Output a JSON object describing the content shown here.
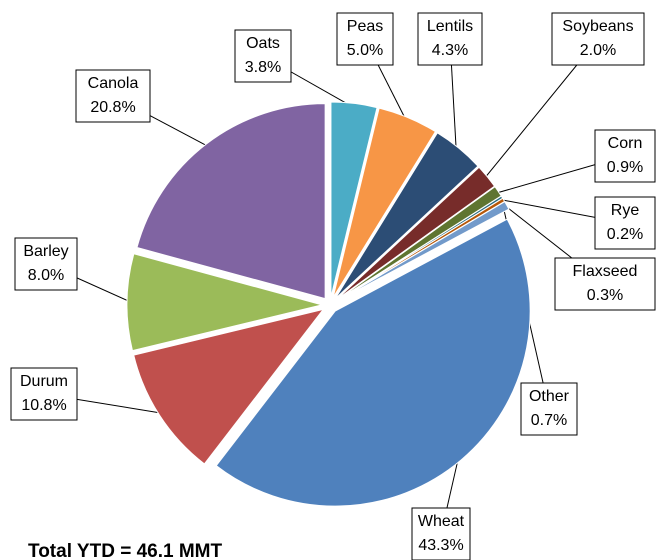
{
  "chart_data": {
    "type": "pie",
    "annotation": "Total YTD = 46.1 MMT",
    "categories": [
      "Oats",
      "Peas",
      "Lentils",
      "Soybeans",
      "Corn",
      "Rye",
      "Flaxseed",
      "Other",
      "Wheat",
      "Durum",
      "Barley",
      "Canola"
    ],
    "values": [
      3.8,
      5.0,
      4.3,
      2.0,
      0.9,
      0.2,
      0.3,
      0.7,
      43.3,
      10.8,
      8.0,
      20.8
    ],
    "value_labels": [
      "3.8%",
      "5.0%",
      "4.3%",
      "2.0%",
      "0.9%",
      "0.2%",
      "0.3%",
      "0.7%",
      "43.3%",
      "10.8%",
      "8.0%",
      "20.8%"
    ],
    "colors": [
      "#4bacc6",
      "#f79646",
      "#2c4d75",
      "#772c2a",
      "#5f7530",
      "#276a7c",
      "#b65708",
      "#729aca",
      "#4f81bd",
      "#c0504d",
      "#9bbb59",
      "#8064a2"
    ]
  }
}
